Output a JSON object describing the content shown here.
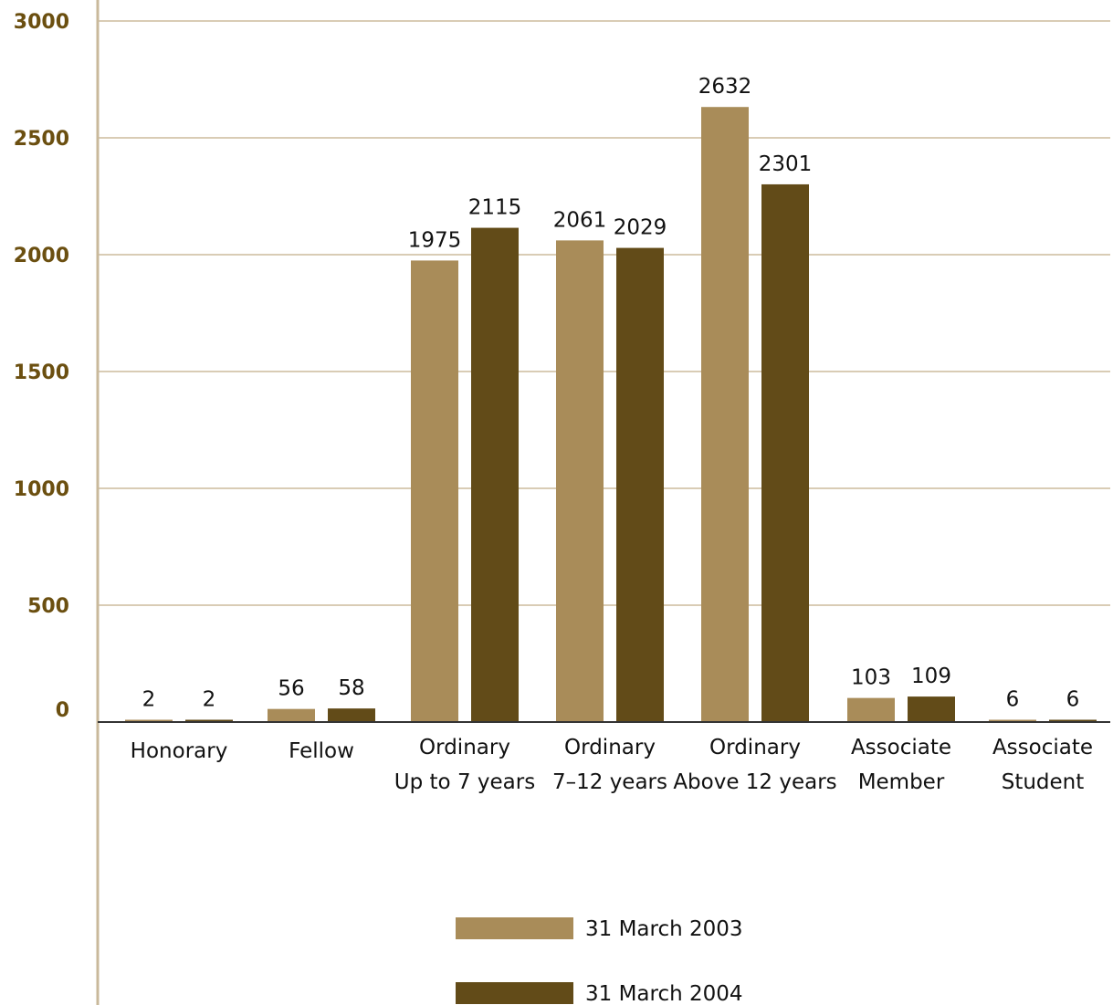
{
  "chart_data": {
    "type": "bar",
    "categories": [
      [
        "Honorary"
      ],
      [
        "Fellow"
      ],
      [
        "Ordinary",
        "Up to 7 years"
      ],
      [
        "Ordinary",
        "7–12 years"
      ],
      [
        "Ordinary",
        "Above 12 years"
      ],
      [
        "Associate",
        "Member"
      ],
      [
        "Associate",
        "Student"
      ]
    ],
    "series": [
      {
        "name": "31 March 2003",
        "values": [
          2,
          56,
          1975,
          2061,
          2632,
          103,
          6
        ],
        "color": "#a98c59"
      },
      {
        "name": "31 March 2004",
        "values": [
          2,
          58,
          2115,
          2029,
          2301,
          109,
          6
        ],
        "color": "#624b18"
      }
    ],
    "yticks": [
      "0",
      "500",
      "1000",
      "1500",
      "2000",
      "2500",
      "3000"
    ],
    "ylim": [
      0,
      3000
    ],
    "grid": true,
    "legend": "bottom-center",
    "colors": {
      "axis_tick_text": "#6b4f10",
      "grid": "#d9ccb5",
      "axis": "#c9b99b",
      "baseline": "#333333"
    }
  }
}
